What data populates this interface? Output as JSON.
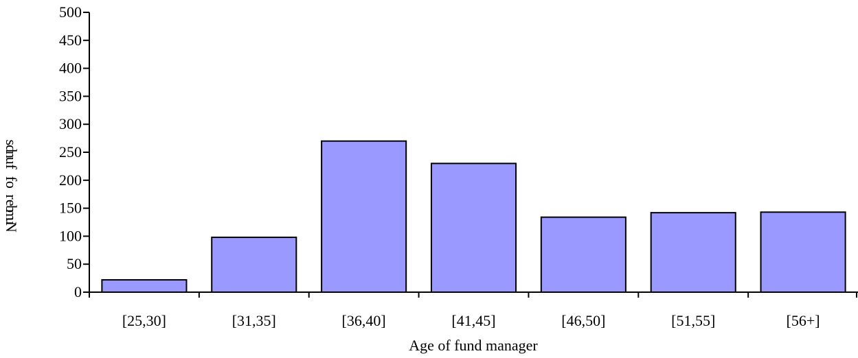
{
  "chart_data": {
    "type": "bar",
    "title": "",
    "xlabel": "Age of fund manager",
    "ylabel": "Number of funds",
    "categories": [
      "[25,30]",
      "[31,35]",
      "[36,40]",
      "[41,45]",
      "[46,50]",
      "[51,55]",
      "[56+]"
    ],
    "values": [
      22,
      98,
      270,
      230,
      134,
      142,
      143
    ],
    "ylim": [
      0,
      500
    ],
    "yticks": [
      0,
      50,
      100,
      150,
      200,
      250,
      300,
      350,
      400,
      450,
      500
    ],
    "grid": false,
    "legend": "none",
    "colors": {
      "bar_fill": "#9999ff",
      "bar_stroke": "#000000",
      "axis": "#000000"
    }
  }
}
